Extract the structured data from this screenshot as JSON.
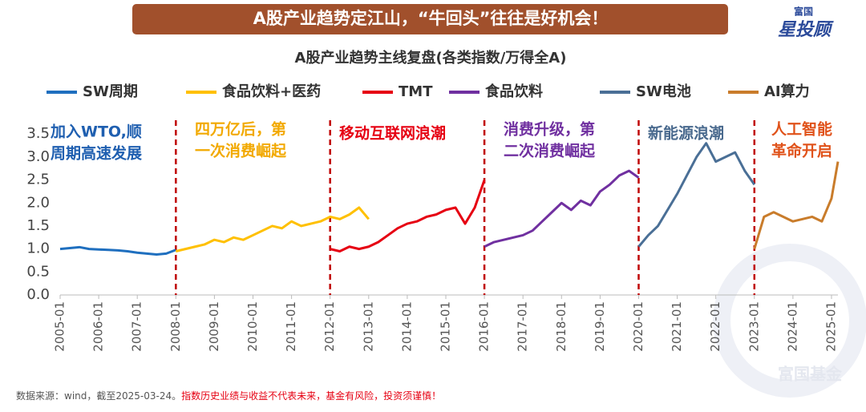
{
  "chart_data": {
    "type": "line",
    "title": "A股产业趋势定江山，“牛回头”往往是好机会！",
    "subtitle": "A股产业趋势主线复盘(各类指数/万得全A)",
    "logo": [
      "富国",
      "星投顾"
    ],
    "watermark": "富国基金",
    "source": "数据来源：wind，截至2025-03-24。",
    "disclaimer": "指数历史业绩与收益不代表未来，基金有风险，投资须谨慎！",
    "xlim": [
      "2005-01",
      "2025-03"
    ],
    "xticks": [
      "2005-01",
      "2006-01",
      "2007-01",
      "2008-01",
      "2009-01",
      "2010-01",
      "2011-01",
      "2012-01",
      "2013-01",
      "2014-01",
      "2015-01",
      "2016-01",
      "2017-01",
      "2018-01",
      "2019-01",
      "2020-01",
      "2021-01",
      "2022-01",
      "2023-01",
      "2024-01",
      "2025-01"
    ],
    "ylim": [
      0,
      3.8
    ],
    "yticks": [
      {
        "value": 0,
        "label": "0.0"
      },
      {
        "value": 0.5,
        "label": "0.5"
      },
      {
        "value": 1,
        "label": "1.0"
      },
      {
        "value": 1.5,
        "label": "1.5"
      },
      {
        "value": 2,
        "label": "2.0"
      },
      {
        "value": 2.5,
        "label": "2.5"
      },
      {
        "value": 3,
        "label": "3.0"
      },
      {
        "value": 3.5,
        "label": "3.5"
      }
    ],
    "dividers": [
      "2008-01",
      "2012-01",
      "2016-01",
      "2020-01",
      "2023-01"
    ],
    "divider_color": "#c00000",
    "annotations": [
      {
        "lines": [
          "加入WTO,顺",
          "周期高速发展"
        ],
        "color": "#1f5fb0"
      },
      {
        "lines": [
          "四万亿后，第",
          "一次消费崛起"
        ],
        "color": "#f2a900"
      },
      {
        "lines": [
          "移动互联网浪潮"
        ],
        "color": "#e60012"
      },
      {
        "lines": [
          "消费升级，第",
          "二次消费崛起"
        ],
        "color": "#7030a0"
      },
      {
        "lines": [
          "新能源浪潮"
        ],
        "color": "#4a6a8e"
      },
      {
        "lines": [
          "人工智能",
          "革命开启"
        ],
        "color": "#e0521a"
      }
    ],
    "series": [
      {
        "name": "SW周期",
        "color": "#1f6fbf",
        "x": [
          "2005-01",
          "2005-04",
          "2005-07",
          "2005-10",
          "2006-01",
          "2006-04",
          "2006-07",
          "2006-10",
          "2007-01",
          "2007-04",
          "2007-07",
          "2007-10",
          "2008-01"
        ],
        "values": [
          1.0,
          1.02,
          1.04,
          1.0,
          0.99,
          0.98,
          0.97,
          0.95,
          0.92,
          0.9,
          0.88,
          0.9,
          0.98
        ]
      },
      {
        "name": "食品饮料+医药",
        "color": "#ffc000",
        "x": [
          "2008-01",
          "2008-04",
          "2008-07",
          "2008-10",
          "2009-01",
          "2009-04",
          "2009-07",
          "2009-10",
          "2010-01",
          "2010-04",
          "2010-07",
          "2010-10",
          "2011-01",
          "2011-04",
          "2011-07",
          "2011-10",
          "2012-01",
          "2012-04",
          "2012-07",
          "2012-10",
          "2013-01"
        ],
        "values": [
          0.95,
          1.0,
          1.05,
          1.1,
          1.2,
          1.15,
          1.25,
          1.2,
          1.3,
          1.4,
          1.5,
          1.45,
          1.6,
          1.5,
          1.55,
          1.6,
          1.7,
          1.65,
          1.75,
          1.9,
          1.65
        ]
      },
      {
        "name": "TMT",
        "color": "#e60012",
        "x": [
          "2012-01",
          "2012-04",
          "2012-07",
          "2012-10",
          "2013-01",
          "2013-04",
          "2013-07",
          "2013-10",
          "2014-01",
          "2014-04",
          "2014-07",
          "2014-10",
          "2015-01",
          "2015-04",
          "2015-07",
          "2015-10",
          "2016-01"
        ],
        "values": [
          1.0,
          0.95,
          1.05,
          1.0,
          1.05,
          1.15,
          1.3,
          1.45,
          1.55,
          1.6,
          1.7,
          1.75,
          1.85,
          1.9,
          1.55,
          1.9,
          2.5
        ]
      },
      {
        "name": "食品饮料",
        "color": "#7030a0",
        "x": [
          "2016-01",
          "2016-04",
          "2016-07",
          "2016-10",
          "2017-01",
          "2017-04",
          "2017-07",
          "2017-10",
          "2018-01",
          "2018-04",
          "2018-07",
          "2018-10",
          "2019-01",
          "2019-04",
          "2019-07",
          "2019-10",
          "2020-01"
        ],
        "values": [
          1.05,
          1.15,
          1.2,
          1.25,
          1.3,
          1.4,
          1.6,
          1.8,
          2.0,
          1.85,
          2.05,
          1.95,
          2.25,
          2.4,
          2.6,
          2.7,
          2.55
        ]
      },
      {
        "name": "SW电池",
        "color": "#4a6f96",
        "x": [
          "2020-01",
          "2020-04",
          "2020-07",
          "2020-10",
          "2021-01",
          "2021-04",
          "2021-07",
          "2021-10",
          "2022-01",
          "2022-04",
          "2022-07",
          "2022-10",
          "2023-01"
        ],
        "values": [
          1.05,
          1.3,
          1.5,
          1.85,
          2.2,
          2.6,
          3.0,
          3.3,
          2.9,
          3.0,
          3.1,
          2.7,
          2.4
        ]
      },
      {
        "name": "AI算力",
        "color": "#c97c2b",
        "x": [
          "2023-01",
          "2023-04",
          "2023-07",
          "2023-10",
          "2024-01",
          "2024-04",
          "2024-07",
          "2024-10",
          "2025-01",
          "2025-03"
        ],
        "values": [
          1.0,
          1.7,
          1.8,
          1.7,
          1.6,
          1.65,
          1.7,
          1.6,
          2.1,
          2.9
        ]
      }
    ]
  }
}
